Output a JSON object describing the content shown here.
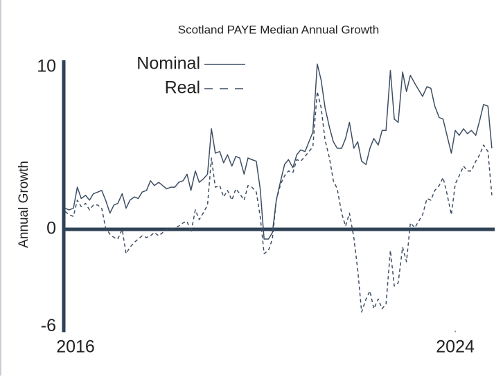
{
  "chart_data": {
    "type": "line",
    "title": "Scotland PAYE Median Annual Growth",
    "y_label": "Annual Growth",
    "x": [
      2016.0,
      2016.08,
      2016.17,
      2016.25,
      2016.33,
      2016.42,
      2016.5,
      2016.58,
      2016.67,
      2016.75,
      2016.83,
      2016.92,
      2017.0,
      2017.08,
      2017.17,
      2017.25,
      2017.33,
      2017.42,
      2017.5,
      2017.58,
      2017.67,
      2017.75,
      2017.83,
      2017.92,
      2018.0,
      2018.08,
      2018.17,
      2018.25,
      2018.33,
      2018.42,
      2018.5,
      2018.58,
      2018.67,
      2018.75,
      2018.83,
      2018.92,
      2019.0,
      2019.08,
      2019.17,
      2019.25,
      2019.33,
      2019.42,
      2019.5,
      2019.58,
      2019.67,
      2019.75,
      2019.83,
      2019.92,
      2020.0,
      2020.08,
      2020.17,
      2020.25,
      2020.33,
      2020.42,
      2020.5,
      2020.58,
      2020.67,
      2020.75,
      2020.83,
      2020.92,
      2021.0,
      2021.08,
      2021.17,
      2021.25,
      2021.33,
      2021.42,
      2021.5,
      2021.58,
      2021.67,
      2021.75,
      2021.83,
      2021.92,
      2022.0,
      2022.08,
      2022.17,
      2022.25,
      2022.33,
      2022.42,
      2022.5,
      2022.58,
      2022.67,
      2022.75,
      2022.83,
      2022.92,
      2023.0,
      2023.08,
      2023.17,
      2023.25,
      2023.33,
      2023.42,
      2023.5,
      2023.58,
      2023.67,
      2023.75,
      2023.83,
      2023.92,
      2024.0,
      2024.08,
      2024.17,
      2024.25,
      2024.33,
      2024.42,
      2024.5,
      2024.58,
      2024.67,
      2024.75
    ],
    "series": [
      {
        "name": "Nominal",
        "color": "#3d4e63",
        "style": "solid",
        "values": [
          1.3,
          1.2,
          1.3,
          2.6,
          1.9,
          2.1,
          1.8,
          2.2,
          2.3,
          2.4,
          1.8,
          1.0,
          1.5,
          1.6,
          2.2,
          1.3,
          1.8,
          2.0,
          1.9,
          2.3,
          2.4,
          3.0,
          2.7,
          2.9,
          2.7,
          2.5,
          2.6,
          2.6,
          2.9,
          3.0,
          3.4,
          2.4,
          3.6,
          2.9,
          3.1,
          3.4,
          6.2,
          4.7,
          4.8,
          4.1,
          4.6,
          3.9,
          4.5,
          4.4,
          3.4,
          4.4,
          4.3,
          4.2,
          2.5,
          -0.6,
          -0.6,
          -0.2,
          1.8,
          3.0,
          4.0,
          4.3,
          3.8,
          4.6,
          4.9,
          4.8,
          5.4,
          6.0,
          10.2,
          9.2,
          7.5,
          6.3,
          5.4,
          5.0,
          5.0,
          5.6,
          6.6,
          5.0,
          5.4,
          4.2,
          4.0,
          5.0,
          5.6,
          5.2,
          6.1,
          6.1,
          9.8,
          6.8,
          6.6,
          9.7,
          8.5,
          9.5,
          9.0,
          8.6,
          8.2,
          8.8,
          8.7,
          7.6,
          6.9,
          6.8,
          5.8,
          4.7,
          6.1,
          5.8,
          6.2,
          5.9,
          6.1,
          5.8,
          6.7,
          7.7,
          7.6,
          5.0
        ]
      },
      {
        "name": "Real",
        "color": "#3d4e63",
        "style": "dashed",
        "values": [
          1.1,
          0.9,
          0.8,
          1.8,
          1.4,
          1.6,
          1.2,
          1.5,
          1.5,
          1.3,
          0.1,
          -0.3,
          -0.5,
          -0.6,
          0.0,
          -1.5,
          -1.1,
          -0.8,
          -0.6,
          -0.4,
          -0.5,
          -0.4,
          -0.2,
          -0.4,
          -0.2,
          0.0,
          0.0,
          0.1,
          0.2,
          0.4,
          0.5,
          -0.2,
          1.2,
          0.6,
          1.0,
          1.5,
          4.4,
          2.6,
          2.7,
          2.0,
          2.4,
          1.8,
          2.5,
          2.2,
          1.8,
          2.7,
          2.6,
          2.3,
          0.8,
          -1.5,
          -1.3,
          -0.6,
          1.8,
          2.8,
          3.3,
          3.6,
          3.5,
          4.3,
          4.2,
          4.5,
          4.8,
          5.1,
          8.5,
          7.5,
          5.5,
          4.4,
          3.0,
          2.5,
          1.0,
          0.2,
          1.0,
          -0.5,
          -2.5,
          -5.1,
          -4.3,
          -3.8,
          -4.9,
          -4.3,
          -4.9,
          -4.6,
          -1.3,
          -3.5,
          -3.3,
          -1.1,
          -2.0,
          0.4,
          0.1,
          0.5,
          0.9,
          1.9,
          1.8,
          2.4,
          2.7,
          3.2,
          2.2,
          0.9,
          2.8,
          3.3,
          3.9,
          3.6,
          3.6,
          4.2,
          4.6,
          5.2,
          4.8,
          2.1
        ]
      }
    ],
    "xlim": [
      2016,
      2024.78
    ],
    "xticks": [
      2016,
      2024
    ],
    "ylim": [
      -6,
      10
    ],
    "yticks": [
      -6,
      0,
      10
    ],
    "grid": false,
    "legend": "top-left"
  }
}
